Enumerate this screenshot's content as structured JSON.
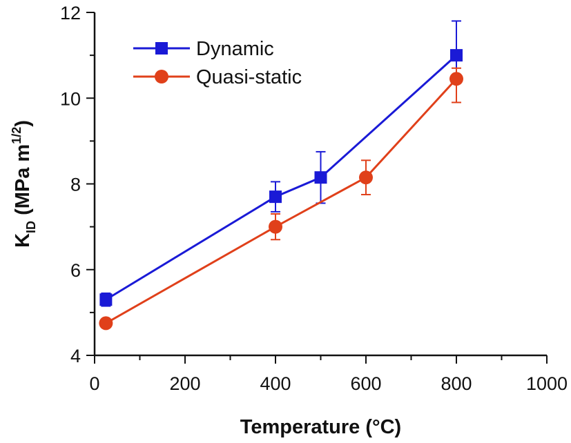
{
  "chart_data": {
    "type": "line",
    "xlabel": "Temperature (°C)",
    "ylabel": {
      "base": "K",
      "subscript": "ID",
      "text": " (MPa m",
      "superscript": "1/2",
      "close": ")"
    },
    "xlim": [
      0,
      1000
    ],
    "ylim": [
      4,
      12
    ],
    "xticks": [
      0,
      200,
      400,
      600,
      800,
      1000
    ],
    "yticks": [
      4,
      6,
      8,
      10,
      12
    ],
    "grid": false,
    "legend_position": "top-left",
    "series": [
      {
        "name": "Dynamic",
        "color": "#1a1ad6",
        "marker": "square",
        "x": [
          25,
          400,
          500,
          800
        ],
        "y": [
          5.3,
          7.7,
          8.15,
          11.0
        ],
        "err_low": [
          5.15,
          7.35,
          7.55,
          10.35
        ],
        "err_high": [
          5.45,
          8.05,
          8.75,
          11.8
        ]
      },
      {
        "name": "Quasi-static",
        "color": "#e0401a",
        "marker": "circle",
        "x": [
          25,
          400,
          600,
          800
        ],
        "y": [
          4.75,
          7.0,
          8.15,
          10.45
        ],
        "err_low": [
          4.7,
          6.7,
          7.75,
          9.9
        ],
        "err_high": [
          4.8,
          7.3,
          8.55,
          10.7
        ]
      }
    ]
  }
}
